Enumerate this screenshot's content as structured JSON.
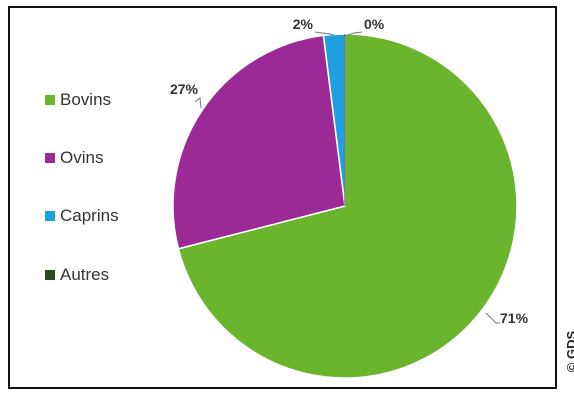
{
  "chart_data": {
    "type": "pie",
    "categories": [
      "Bovins",
      "Ovins",
      "Caprins",
      "Autres"
    ],
    "values": [
      71,
      27,
      2,
      0
    ],
    "value_labels": [
      "71%",
      "27%",
      "2%",
      "0%"
    ],
    "colors": [
      "#6bb42d",
      "#9c2a96",
      "#1fa0dc",
      "#2a4a1c"
    ],
    "legend_position": "left",
    "start_angle": "top",
    "direction": "clockwise"
  },
  "credit": "© GDS"
}
